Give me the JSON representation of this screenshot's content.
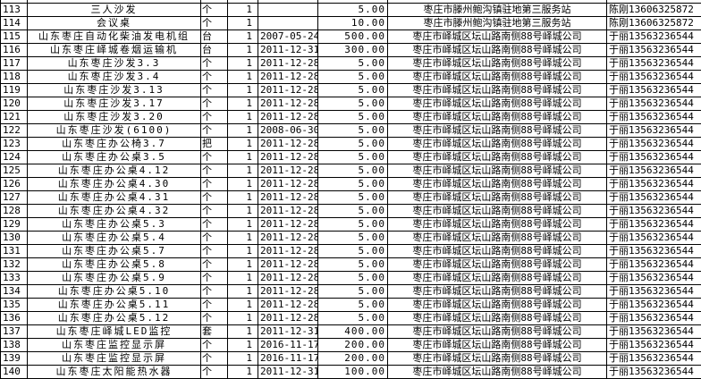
{
  "rows": [
    {
      "id": "113",
      "name": "三人沙发",
      "unit": "个",
      "qty": "1",
      "date": "",
      "value": "5.00",
      "location": "枣庄市滕州鲍沟镇驻地第三服务站",
      "contact": "陈刚13606325872"
    },
    {
      "id": "114",
      "name": "会议桌",
      "unit": "个",
      "qty": "1",
      "date": "",
      "value": "10.00",
      "location": "枣庄市滕州鲍沟镇驻地第三服务站",
      "contact": "陈刚13606325872"
    },
    {
      "id": "115",
      "name": "山东枣庄自动化柴油发电机组",
      "unit": "台",
      "qty": "1",
      "date": "2007-05-24",
      "value": "500.00",
      "location": "枣庄市峄城区坛山路南侧88号峄城公司",
      "contact": "于丽13563236544"
    },
    {
      "id": "116",
      "name": "山东枣庄峄城卷烟运输机",
      "unit": "台",
      "qty": "1",
      "date": "2011-12-31",
      "value": "300.00",
      "location": "枣庄市峄城区坛山路南侧88号峄城公司",
      "contact": "于丽13563236544"
    },
    {
      "id": "117",
      "name": "山东枣庄沙发3.3",
      "unit": "个",
      "qty": "1",
      "date": "2011-12-28",
      "value": "5.00",
      "location": "枣庄市峄城区坛山路南侧88号峄城公司",
      "contact": "于丽13563236544"
    },
    {
      "id": "118",
      "name": "山东枣庄沙发3.4",
      "unit": "个",
      "qty": "1",
      "date": "2011-12-28",
      "value": "5.00",
      "location": "枣庄市峄城区坛山路南侧88号峄城公司",
      "contact": "于丽13563236544"
    },
    {
      "id": "119",
      "name": "山东枣庄沙发3.13",
      "unit": "个",
      "qty": "1",
      "date": "2011-12-28",
      "value": "5.00",
      "location": "枣庄市峄城区坛山路南侧88号峄城公司",
      "contact": "于丽13563236544"
    },
    {
      "id": "120",
      "name": "山东枣庄沙发3.17",
      "unit": "个",
      "qty": "1",
      "date": "2011-12-28",
      "value": "5.00",
      "location": "枣庄市峄城区坛山路南侧88号峄城公司",
      "contact": "于丽13563236544"
    },
    {
      "id": "121",
      "name": "山东枣庄沙发3.20",
      "unit": "个",
      "qty": "1",
      "date": "2011-12-28",
      "value": "5.00",
      "location": "枣庄市峄城区坛山路南侧88号峄城公司",
      "contact": "于丽13563236544"
    },
    {
      "id": "122",
      "name": "山东枣庄沙发(6100)",
      "unit": "个",
      "qty": "1",
      "date": "2008-06-30",
      "value": "5.00",
      "location": "枣庄市峄城区坛山路南侧88号峄城公司",
      "contact": "于丽13563236544"
    },
    {
      "id": "123",
      "name": "山东枣庄办公椅3.7",
      "unit": "把",
      "qty": "1",
      "date": "2011-12-28",
      "value": "5.00",
      "location": "枣庄市峄城区坛山路南侧88号峄城公司",
      "contact": "于丽13563236544"
    },
    {
      "id": "124",
      "name": "山东枣庄办公桌3.5",
      "unit": "个",
      "qty": "1",
      "date": "2011-12-28",
      "value": "5.00",
      "location": "枣庄市峄城区坛山路南侧88号峄城公司",
      "contact": "于丽13563236544"
    },
    {
      "id": "125",
      "name": "山东枣庄办公桌4.12",
      "unit": "个",
      "qty": "1",
      "date": "2011-12-28",
      "value": "5.00",
      "location": "枣庄市峄城区坛山路南侧88号峄城公司",
      "contact": "于丽13563236544"
    },
    {
      "id": "126",
      "name": "山东枣庄办公桌4.30",
      "unit": "个",
      "qty": "1",
      "date": "2011-12-28",
      "value": "5.00",
      "location": "枣庄市峄城区坛山路南侧88号峄城公司",
      "contact": "于丽13563236544"
    },
    {
      "id": "127",
      "name": "山东枣庄办公桌4.31",
      "unit": "个",
      "qty": "1",
      "date": "2011-12-28",
      "value": "5.00",
      "location": "枣庄市峄城区坛山路南侧88号峄城公司",
      "contact": "于丽13563236544"
    },
    {
      "id": "128",
      "name": "山东枣庄办公桌4.32",
      "unit": "个",
      "qty": "1",
      "date": "2011-12-28",
      "value": "5.00",
      "location": "枣庄市峄城区坛山路南侧88号峄城公司",
      "contact": "于丽13563236544"
    },
    {
      "id": "129",
      "name": "山东枣庄办公桌5.3",
      "unit": "个",
      "qty": "1",
      "date": "2011-12-28",
      "value": "5.00",
      "location": "枣庄市峄城区坛山路南侧88号峄城公司",
      "contact": "于丽13563236544"
    },
    {
      "id": "130",
      "name": "山东枣庄办公桌5.4",
      "unit": "个",
      "qty": "1",
      "date": "2011-12-28",
      "value": "5.00",
      "location": "枣庄市峄城区坛山路南侧88号峄城公司",
      "contact": "于丽13563236544"
    },
    {
      "id": "131",
      "name": "山东枣庄办公桌5.7",
      "unit": "个",
      "qty": "1",
      "date": "2011-12-28",
      "value": "5.00",
      "location": "枣庄市峄城区坛山路南侧88号峄城公司",
      "contact": "于丽13563236544"
    },
    {
      "id": "132",
      "name": "山东枣庄办公桌5.8",
      "unit": "个",
      "qty": "1",
      "date": "2011-12-28",
      "value": "5.00",
      "location": "枣庄市峄城区坛山路南侧88号峄城公司",
      "contact": "于丽13563236544"
    },
    {
      "id": "133",
      "name": "山东枣庄办公桌5.9",
      "unit": "个",
      "qty": "1",
      "date": "2011-12-28",
      "value": "5.00",
      "location": "枣庄市峄城区坛山路南侧88号峄城公司",
      "contact": "于丽13563236544"
    },
    {
      "id": "134",
      "name": "山东枣庄办公桌5.10",
      "unit": "个",
      "qty": "1",
      "date": "2011-12-28",
      "value": "5.00",
      "location": "枣庄市峄城区坛山路南侧88号峄城公司",
      "contact": "于丽13563236544"
    },
    {
      "id": "135",
      "name": "山东枣庄办公桌5.11",
      "unit": "个",
      "qty": "1",
      "date": "2011-12-28",
      "value": "5.00",
      "location": "枣庄市峄城区坛山路南侧88号峄城公司",
      "contact": "于丽13563236544"
    },
    {
      "id": "136",
      "name": "山东枣庄办公桌5.12",
      "unit": "个",
      "qty": "1",
      "date": "2011-12-28",
      "value": "5.00",
      "location": "枣庄市峄城区坛山路南侧88号峄城公司",
      "contact": "于丽13563236544"
    },
    {
      "id": "137",
      "name": "山东枣庄峄城LED监控",
      "unit": "套",
      "qty": "1",
      "date": "2011-12-31",
      "value": "400.00",
      "location": "枣庄市峄城区坛山路南侧88号峄城公司",
      "contact": "于丽13563236544"
    },
    {
      "id": "138",
      "name": "山东枣庄监控显示屏",
      "unit": "个",
      "qty": "1",
      "date": "2016-11-17",
      "value": "200.00",
      "location": "枣庄市峄城区坛山路南侧88号峄城公司",
      "contact": "于丽13563236544"
    },
    {
      "id": "139",
      "name": "山东枣庄监控显示屏",
      "unit": "个",
      "qty": "1",
      "date": "2016-11-17",
      "value": "200.00",
      "location": "枣庄市峄城区坛山路南侧88号峄城公司",
      "contact": "于丽13563236544"
    },
    {
      "id": "140",
      "name": "山东枣庄太阳能热水器",
      "unit": "个",
      "qty": "1",
      "date": "2011-12-31",
      "value": "100.00",
      "location": "枣庄市峄城区坛山路南侧88号峄城公司",
      "contact": "于丽13563236544"
    }
  ]
}
